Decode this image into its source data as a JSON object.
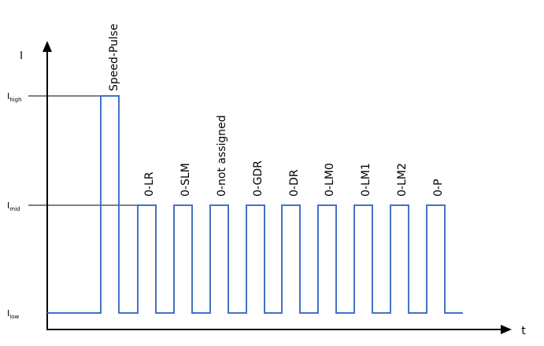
{
  "axes": {
    "y_label": "I",
    "x_label": "t",
    "color": "#000000"
  },
  "levels": [
    {
      "key": "high",
      "base": "I",
      "sub": "high"
    },
    {
      "key": "mid",
      "base": "I",
      "sub": "mid"
    },
    {
      "key": "low",
      "base": "I",
      "sub": "low"
    }
  ],
  "signal": {
    "color": "#4472c4",
    "pulses": [
      {
        "label": "Speed-Pulse",
        "level": "high"
      },
      {
        "label": "0-LR",
        "level": "mid"
      },
      {
        "label": "0-SLM",
        "level": "mid"
      },
      {
        "label": "0-not assigned",
        "level": "mid"
      },
      {
        "label": "0-GDR",
        "level": "mid"
      },
      {
        "label": "0-DR",
        "level": "mid"
      },
      {
        "label": "0-LM0",
        "level": "mid"
      },
      {
        "label": "0-LM1",
        "level": "mid"
      },
      {
        "label": "0-LM2",
        "level": "mid"
      },
      {
        "label": "0-P",
        "level": "mid"
      }
    ]
  }
}
